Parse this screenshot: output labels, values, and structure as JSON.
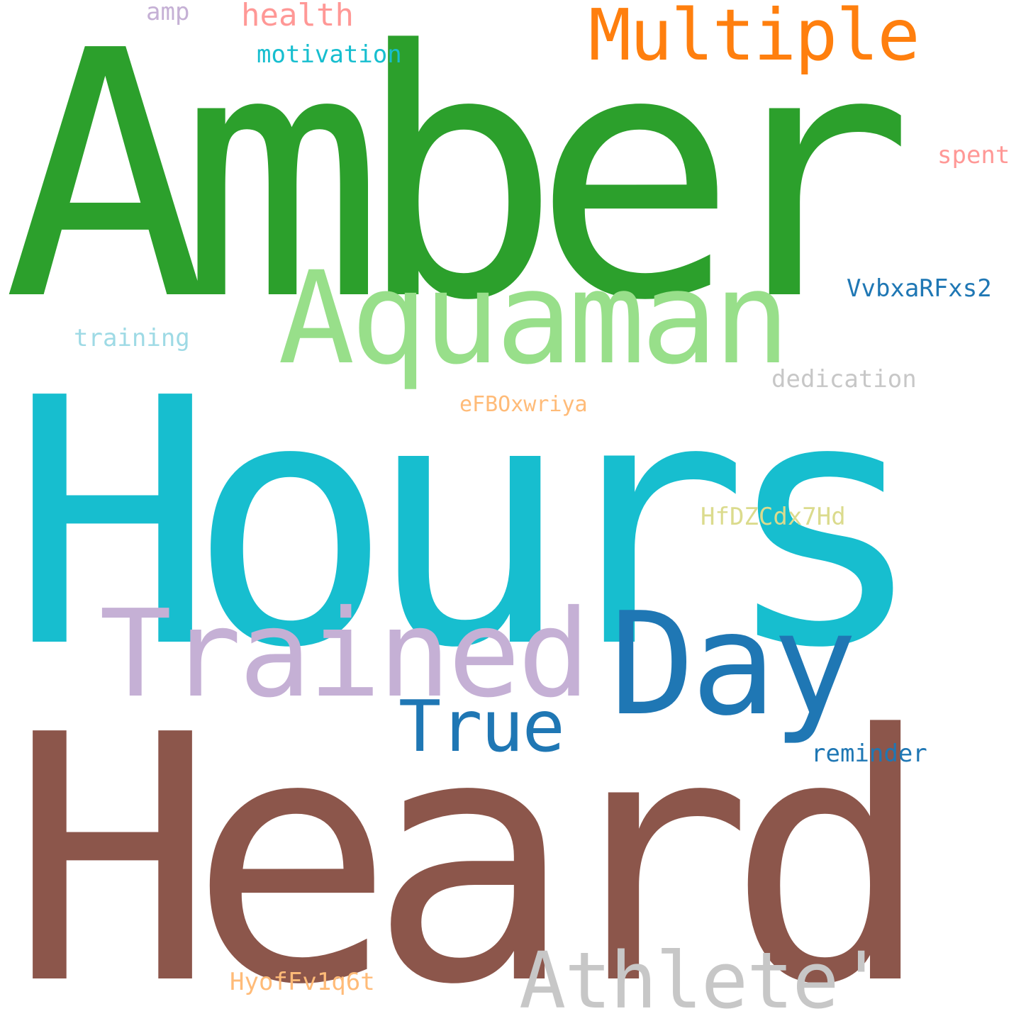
{
  "words": {
    "amber": {
      "text": "Amber",
      "color": "#2ca02c"
    },
    "hours": {
      "text": "Hours",
      "color": "#17becf"
    },
    "heard": {
      "text": "Heard",
      "color": "#8c564b"
    },
    "aquaman": {
      "text": "Aquaman",
      "color": "#98df8a"
    },
    "trained": {
      "text": "Trained",
      "color": "#c5b0d5"
    },
    "day": {
      "text": "Day",
      "color": "#1f77b4"
    },
    "multiple": {
      "text": "Multiple",
      "color": "#ff7f0e"
    },
    "true": {
      "text": "True",
      "color": "#1f77b4"
    },
    "athlete": {
      "text": "Athlete'",
      "color": "#c7c7c7"
    },
    "health": {
      "text": "health",
      "color": "#ff9896"
    },
    "amp": {
      "text": "amp",
      "color": "#c5b0d5"
    },
    "motivation": {
      "text": "motivation",
      "color": "#17becf"
    },
    "spent": {
      "text": "spent",
      "color": "#ff9896"
    },
    "vvbx": {
      "text": "VvbxaRFxs2",
      "color": "#1f77b4"
    },
    "training": {
      "text": "training",
      "color": "#9edae5"
    },
    "dedication": {
      "text": "dedication",
      "color": "#c7c7c7"
    },
    "efb": {
      "text": "eFBOxwriya",
      "color": "#ffbb78"
    },
    "hfdz": {
      "text": "HfDZCdx7Hd",
      "color": "#dbdb8d"
    },
    "reminder": {
      "text": "reminder",
      "color": "#1f77b4"
    },
    "hyof": {
      "text": "HyofFv1q6t",
      "color": "#ffbb78"
    }
  }
}
